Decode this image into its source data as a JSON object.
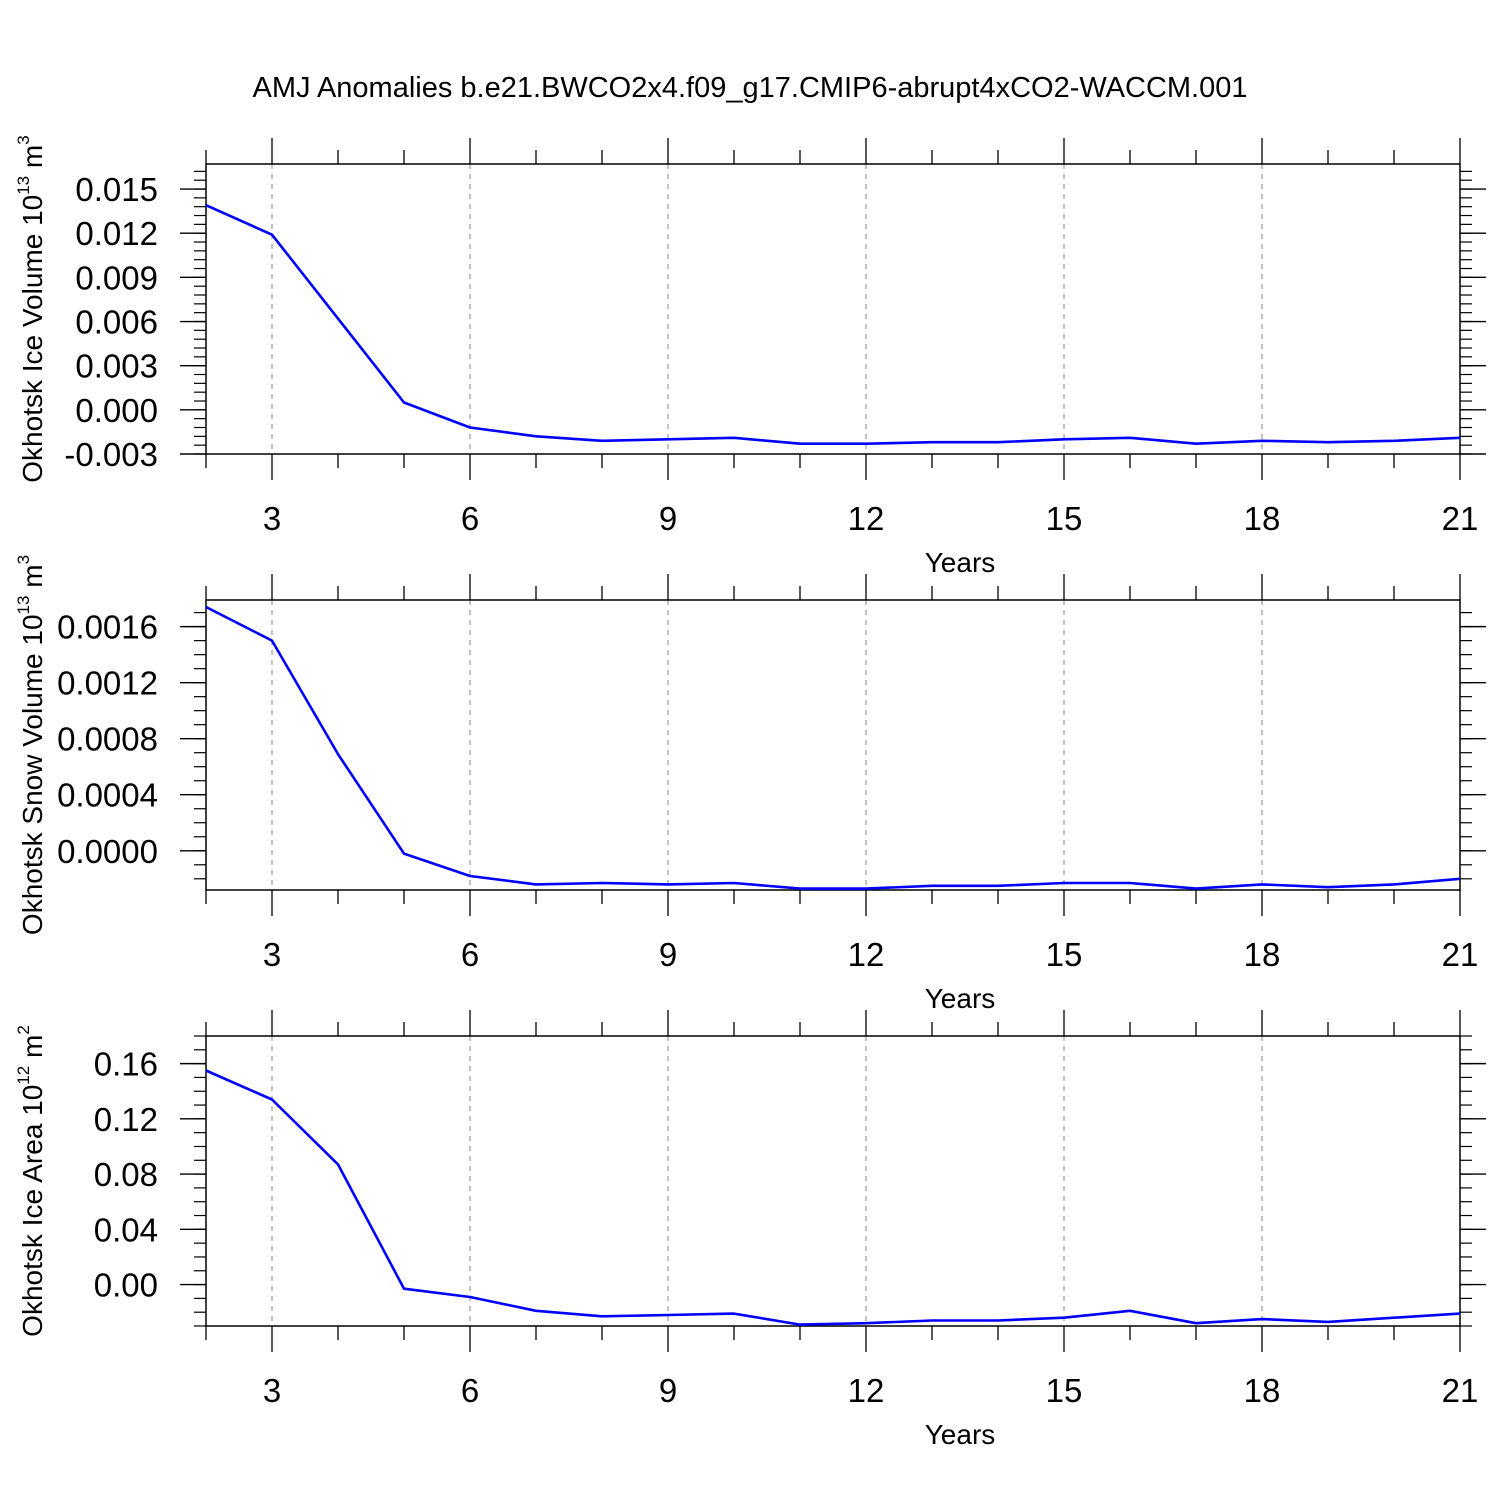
{
  "title": "AMJ Anomalies b.e21.BWCO2x4.f09_g17.CMIP6-abrupt4xCO2-WACCM.001",
  "colors": {
    "line": "#0000ff",
    "grid": "#999999",
    "axis": "#000000"
  },
  "chart_data": [
    {
      "type": "line",
      "ylabel": "Okhotsk Ice Volume 10",
      "ylabel_exp": "13",
      "ylabel_unit": "m",
      "ylabel_unit_exp": "3",
      "xlabel": "Years",
      "xlim": [
        2,
        21
      ],
      "ylim": [
        -0.003,
        0.0167
      ],
      "xticks": [
        3,
        6,
        9,
        12,
        15,
        18,
        21
      ],
      "yticks": [
        {
          "v": 0.015,
          "label": "0.015"
        },
        {
          "v": 0.012,
          "label": "0.012"
        },
        {
          "v": 0.009,
          "label": "0.009"
        },
        {
          "v": 0.006,
          "label": "0.006"
        },
        {
          "v": 0.003,
          "label": "0.003"
        },
        {
          "v": 0.0,
          "label": "0.000"
        },
        {
          "v": -0.003,
          "label": "-0.003"
        }
      ],
      "yminor_step": 0.0006,
      "x": [
        2,
        3,
        4,
        5,
        6,
        7,
        8,
        9,
        10,
        11,
        12,
        13,
        14,
        15,
        16,
        17,
        18,
        19,
        20,
        21
      ],
      "y": [
        0.0139,
        0.0119,
        0.0062,
        0.0005,
        -0.0012,
        -0.0018,
        -0.0021,
        -0.002,
        -0.0019,
        -0.0023,
        -0.0023,
        -0.0022,
        -0.0022,
        -0.002,
        -0.0019,
        -0.0023,
        -0.0021,
        -0.0022,
        -0.0021,
        -0.0019
      ]
    },
    {
      "type": "line",
      "ylabel": "Okhotsk Snow Volume 10",
      "ylabel_exp": "13",
      "ylabel_unit": "m",
      "ylabel_unit_exp": "3",
      "xlabel": "Years",
      "xlim": [
        2,
        21
      ],
      "ylim": [
        -0.00028,
        0.00179
      ],
      "xticks": [
        3,
        6,
        9,
        12,
        15,
        18,
        21
      ],
      "yticks": [
        {
          "v": 0.0016,
          "label": "0.0016"
        },
        {
          "v": 0.0012,
          "label": "0.0012"
        },
        {
          "v": 0.0008,
          "label": "0.0008"
        },
        {
          "v": 0.0004,
          "label": "0.0004"
        },
        {
          "v": 0.0,
          "label": "0.0000"
        }
      ],
      "yminor_step": 0.0001,
      "x": [
        2,
        3,
        4,
        5,
        6,
        7,
        8,
        9,
        10,
        11,
        12,
        13,
        14,
        15,
        16,
        17,
        18,
        19,
        20,
        21
      ],
      "y": [
        0.00174,
        0.0015,
        0.00069,
        -2e-05,
        -0.00018,
        -0.00024,
        -0.00023,
        -0.00024,
        -0.00023,
        -0.00027,
        -0.00027,
        -0.00025,
        -0.00025,
        -0.00023,
        -0.00023,
        -0.00027,
        -0.00024,
        -0.00026,
        -0.00024,
        -0.0002
      ]
    },
    {
      "type": "line",
      "ylabel": "Okhotsk Ice Area 10",
      "ylabel_exp": "12",
      "ylabel_unit": "m",
      "ylabel_unit_exp": "2",
      "xlabel": "Years",
      "xlim": [
        2,
        21
      ],
      "ylim": [
        -0.03,
        0.18
      ],
      "xticks": [
        3,
        6,
        9,
        12,
        15,
        18,
        21
      ],
      "yticks": [
        {
          "v": 0.16,
          "label": "0.16"
        },
        {
          "v": 0.12,
          "label": "0.12"
        },
        {
          "v": 0.08,
          "label": "0.08"
        },
        {
          "v": 0.04,
          "label": "0.04"
        },
        {
          "v": 0.0,
          "label": "0.00"
        }
      ],
      "yminor_step": 0.01,
      "x": [
        2,
        3,
        4,
        5,
        6,
        7,
        8,
        9,
        10,
        11,
        12,
        13,
        14,
        15,
        16,
        17,
        18,
        19,
        20,
        21
      ],
      "y": [
        0.155,
        0.134,
        0.087,
        -0.003,
        -0.009,
        -0.019,
        -0.023,
        -0.022,
        -0.021,
        -0.029,
        -0.028,
        -0.026,
        -0.026,
        -0.024,
        -0.019,
        -0.028,
        -0.025,
        -0.027,
        -0.024,
        -0.021
      ]
    }
  ]
}
